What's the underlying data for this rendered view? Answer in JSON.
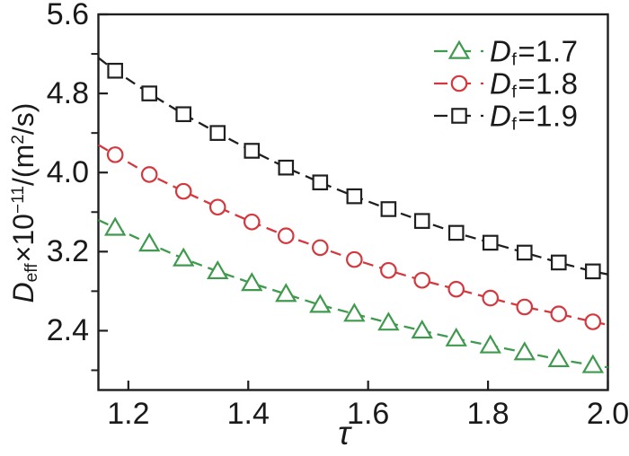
{
  "colors": {
    "frame": "#1f1f1f",
    "tick_text": "#1a1a1a",
    "background": "#ffffff"
  },
  "axes": {
    "x": {
      "label": "τ",
      "ticks": [
        {
          "v": 1.2,
          "t": "1.2"
        },
        {
          "v": 1.4,
          "t": "1.4"
        },
        {
          "v": 1.6,
          "t": "1.6"
        },
        {
          "v": 1.8,
          "t": "1.8"
        },
        {
          "v": 2.0,
          "t": "2.0"
        }
      ]
    },
    "y": {
      "label_parts": {
        "symbol": "D",
        "symbol_sub": "eff",
        "times": "×10",
        "exp": "−11",
        "unit_open": "/(m",
        "unit_exp": "2",
        "unit_close": "/s)"
      },
      "ticks": [
        {
          "v": 5.6,
          "t": "5.6"
        },
        {
          "v": 4.8,
          "t": "4.8"
        },
        {
          "v": 4.0,
          "t": "4.0"
        },
        {
          "v": 3.2,
          "t": "3.2"
        },
        {
          "v": 2.4,
          "t": "2.4"
        }
      ],
      "minors": [
        5.2,
        4.4,
        3.6,
        2.8,
        2.0
      ]
    }
  },
  "legend": {
    "items": [
      {
        "symbol": "D",
        "sub": "f",
        "value": "=1.7"
      },
      {
        "symbol": "D",
        "sub": "f",
        "value": "=1.8"
      },
      {
        "symbol": "D",
        "sub": "f",
        "value": "=1.9"
      }
    ]
  },
  "chart_data": {
    "type": "line",
    "title": "",
    "xlabel": "τ",
    "ylabel": "D_eff×10⁻¹¹/(m²/s)",
    "xlim": [
      1.15,
      2.0
    ],
    "ylim": [
      1.8,
      5.6
    ],
    "xticks": [
      1.2,
      1.4,
      1.6,
      1.8,
      2.0
    ],
    "yticks": [
      2.4,
      3.2,
      4.0,
      4.8,
      5.6
    ],
    "y_minor_ticks": [
      2.0,
      2.8,
      3.6,
      4.4,
      5.2
    ],
    "grid": false,
    "legend_position": "top-right",
    "line_style": "dashed",
    "x": [
      1.178,
      1.235,
      1.292,
      1.349,
      1.406,
      1.463,
      1.52,
      1.577,
      1.634,
      1.69,
      1.747,
      1.804,
      1.861,
      1.918,
      1.975
    ],
    "series": [
      {
        "id": "df-1.7",
        "name": "Df=1.7",
        "marker": "triangle",
        "color": "#3f9a4e",
        "values": [
          3.44,
          3.28,
          3.13,
          3.0,
          2.88,
          2.77,
          2.66,
          2.57,
          2.48,
          2.4,
          2.32,
          2.25,
          2.18,
          2.11,
          2.05
        ],
        "line_edges": {
          "x": [
            1.15,
            2.0
          ],
          "y": [
            3.52,
            2.03
          ]
        }
      },
      {
        "id": "df-1.8",
        "name": "Df=1.8",
        "marker": "circle",
        "color": "#d4383e",
        "values": [
          4.18,
          3.98,
          3.81,
          3.65,
          3.5,
          3.36,
          3.24,
          3.12,
          3.01,
          2.91,
          2.82,
          2.73,
          2.64,
          2.57,
          2.49
        ],
        "line_edges": {
          "x": [
            1.15,
            2.0
          ],
          "y": [
            4.28,
            2.46
          ]
        }
      },
      {
        "id": "df-1.9",
        "name": "Df=1.9",
        "marker": "square",
        "color": "#1f1f1f",
        "values": [
          5.03,
          4.8,
          4.59,
          4.4,
          4.22,
          4.05,
          3.9,
          3.76,
          3.63,
          3.51,
          3.39,
          3.29,
          3.19,
          3.09,
          3.0
        ],
        "line_edges": {
          "x": [
            1.15,
            2.0
          ],
          "y": [
            5.16,
            2.97
          ]
        }
      }
    ]
  }
}
